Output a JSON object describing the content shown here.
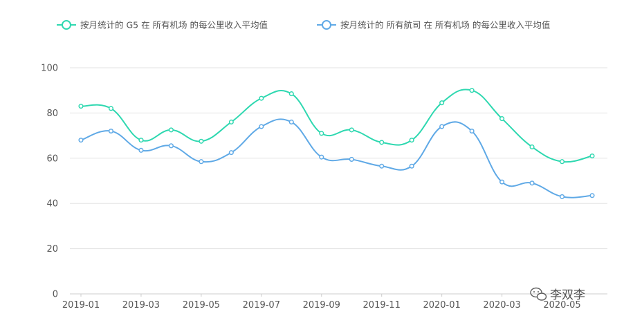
{
  "chart_data": {
    "type": "line",
    "title": "",
    "xlabel": "",
    "ylabel": "",
    "x": [
      "2019-01",
      "2019-02",
      "2019-03",
      "2019-04",
      "2019-05",
      "2019-06",
      "2019-07",
      "2019-08",
      "2019-09",
      "2019-10",
      "2019-11",
      "2019-12",
      "2020-01",
      "2020-02",
      "2020-03",
      "2020-04",
      "2020-05",
      "2020-06"
    ],
    "x_tick_labels": [
      "2019-01",
      "2019-03",
      "2019-05",
      "2019-07",
      "2019-09",
      "2019-11",
      "2020-01",
      "2020-03",
      "2020-05"
    ],
    "y_ticks": [
      0,
      20,
      40,
      60,
      80,
      100
    ],
    "ylim": [
      0,
      100
    ],
    "grid": "horizontal",
    "legend_position": "top",
    "series": [
      {
        "name": "按月统计的 G5 在 所有机场 的每公里收入平均值",
        "color": "#2ed8b0",
        "values": [
          83,
          82,
          68,
          72.5,
          67.5,
          76,
          86.5,
          88.5,
          71,
          72.5,
          67,
          68,
          84.5,
          90,
          77.5,
          65,
          58.5,
          61
        ]
      },
      {
        "name": "按月统计的 所有航司 在 所有机场 的每公里收入平均值",
        "color": "#5fa9e6",
        "values": [
          68,
          72,
          63.5,
          65.5,
          58.5,
          62.5,
          74,
          76,
          60.5,
          59.5,
          56.5,
          56.5,
          74,
          72,
          49.5,
          49,
          43,
          43.5
        ]
      }
    ]
  },
  "watermark": {
    "text": "李双李",
    "icon": "wechat-icon"
  }
}
